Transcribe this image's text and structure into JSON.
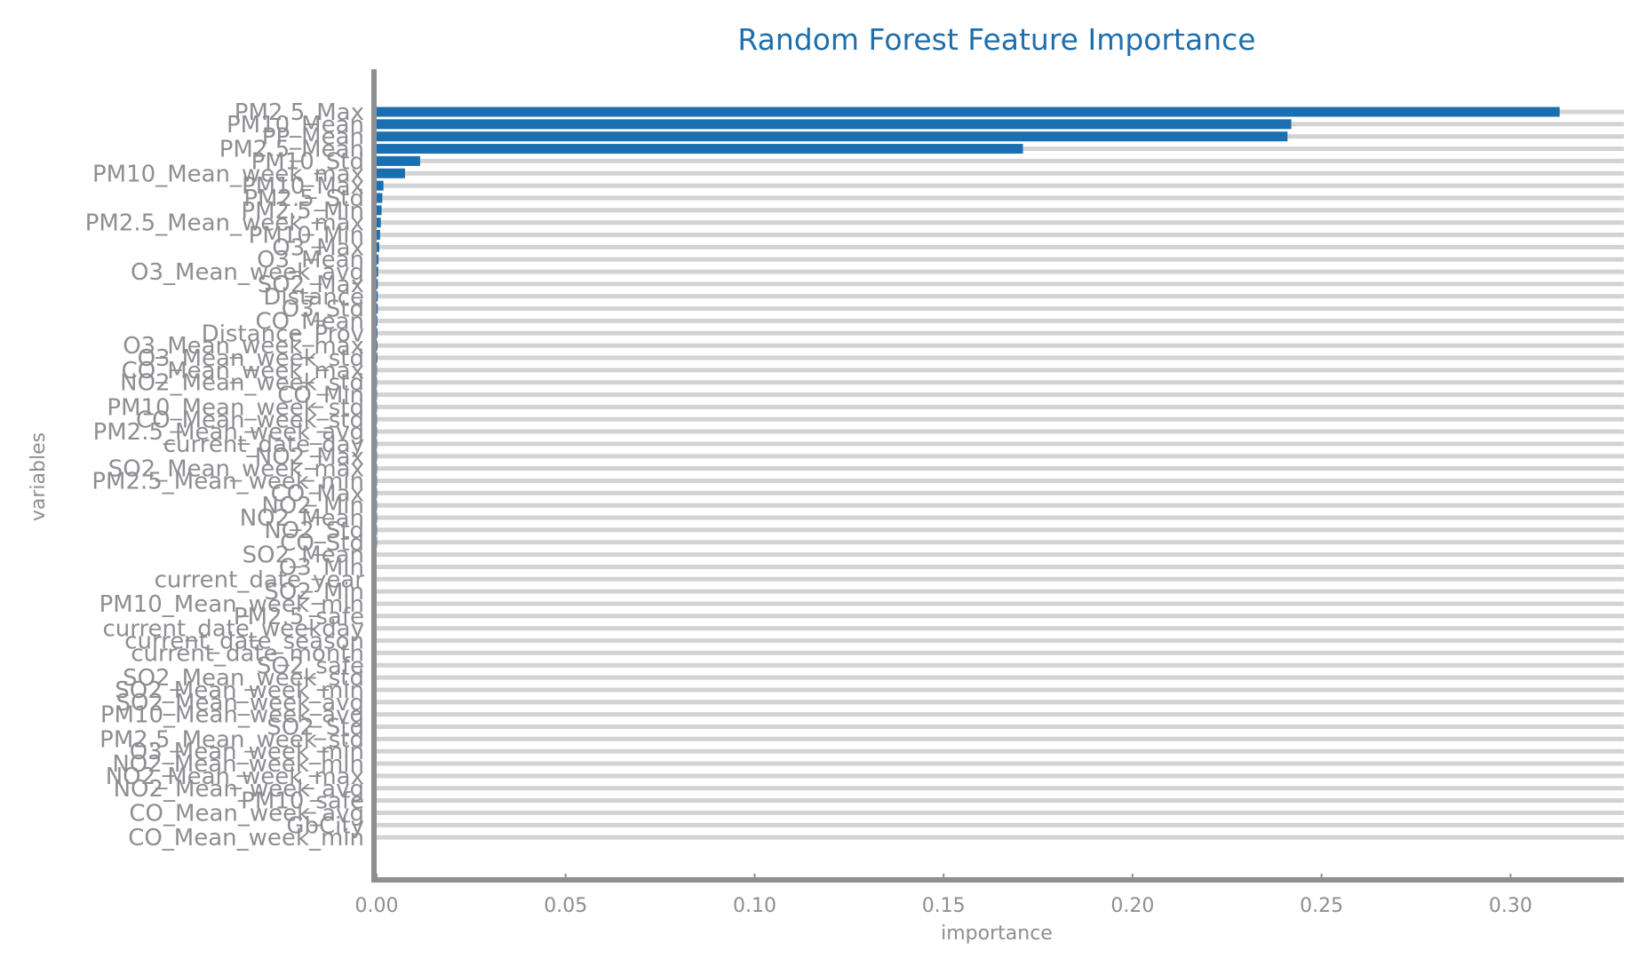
{
  "chart_data": {
    "type": "bar",
    "orientation": "horizontal",
    "title": "Random Forest Feature Importance",
    "xlabel": "importance",
    "ylabel": "variables",
    "xlim": [
      0,
      0.33
    ],
    "xticks": [
      "0.00",
      "0.05",
      "0.10",
      "0.15",
      "0.20",
      "0.25",
      "0.30"
    ],
    "grid": "horizontal background bars",
    "bar_color": "#1a6fb0",
    "background_bar_color": "#d3d3d3",
    "axis_color": "#8e8e93",
    "categories": [
      "PM2.5_Max",
      "PM10_Mean",
      "PP_Mean",
      "PM2.5_Mean",
      "PM10_Std",
      "PM10_Mean_week_max",
      "PM10_Max",
      "PM2.5_Std",
      "PM2.5_Min",
      "PM2.5_Mean_week_max",
      "PM10_Min",
      "O3_Max",
      "O3_Mean",
      "O3_Mean_week_avg",
      "SO2_Max",
      "Distance",
      "O3_Std",
      "CO_Mean",
      "Distance_Prov",
      "O3_Mean_week_max",
      "O3_Mean_week_std",
      "CO_Mean_week_max",
      "NO2_Mean_week_std",
      "CO_Min",
      "PM10_Mean_week_std",
      "CO_Mean_week_std",
      "PM2.5_Mean_week_avg",
      "current_date_day",
      "NO2_Max",
      "SO2_Mean_week_max",
      "PM2.5_Mean_week_min",
      "CO_Max",
      "NO2_Min",
      "NO2_Mean",
      "NO2_Std",
      "CO_Std",
      "SO2_Mean",
      "O3_Min",
      "current_date_year",
      "SO2_Min",
      "PM10_Mean_week_min",
      "PM2.5_safe",
      "current_date_weekday",
      "current_date_season",
      "current_date_month",
      "SO2_safe",
      "SO2_Mean_week_std",
      "SO2_Mean_week_min",
      "SO2_Mean_week_avg",
      "PM10_Mean_week_avg",
      "SO2_Std",
      "PM2.5_Mean_week_std",
      "O3_Mean_week_min",
      "NO2_Mean_week_min",
      "NO2_Mean_week_max",
      "NO2_Mean_week_avg",
      "PM10_safe",
      "CO_Mean_week_avg",
      "GbCity",
      "CO_Mean_week_min"
    ],
    "values": [
      0.313,
      0.242,
      0.241,
      0.171,
      0.0115,
      0.0075,
      0.0018,
      0.0015,
      0.0013,
      0.0011,
      0.0009,
      0.0007,
      0.0005,
      0.0004,
      0.0003,
      0.0003,
      0.0003,
      0.0002,
      0.0002,
      0.0002,
      0.0002,
      0.0001,
      0.0001,
      0.0001,
      0.0001,
      0.0001,
      0.0001,
      0.0001,
      0.0001,
      0.0001,
      0.0001,
      0.0001,
      0.0001,
      0.0001,
      0.0001,
      0.0001,
      0.0,
      0.0,
      0.0,
      0.0,
      0.0,
      0.0,
      0.0,
      0.0,
      0.0,
      0.0,
      0.0,
      0.0,
      0.0,
      0.0,
      0.0,
      0.0,
      0.0,
      0.0,
      0.0,
      0.0,
      0.0,
      0.0,
      0.0,
      0.0
    ]
  }
}
